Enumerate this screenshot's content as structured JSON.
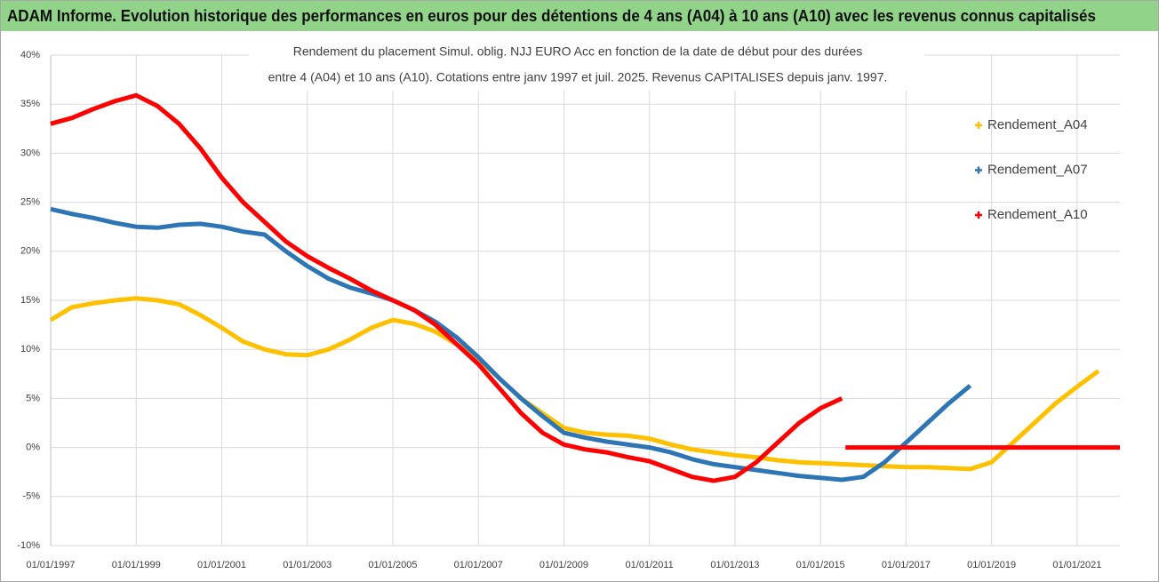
{
  "chart_data": {
    "type": "line",
    "title": "ADAM Informe. Evolution historique des performances en euros pour des détentions de 4 ans (A04) à 10 ans (A10) avec les revenus connus capitalisés",
    "subtitle": [
      "Rendement du placement Simul. oblig. NJJ EURO Acc en fonction de la date de début pour des durées",
      "entre 4 (A04) et 10 ans (A10). Cotations entre janv 1997 et juil. 2025. Revenus CAPITALISES depuis janv. 1997."
    ],
    "xlim": [
      "1997-01-01",
      "2022-01-01"
    ],
    "xticks": [
      {
        "value": "1997-01-01",
        "label": "01/01/1997"
      },
      {
        "value": "1999-01-01",
        "label": "01/01/1999"
      },
      {
        "value": "2001-01-01",
        "label": "01/01/2001"
      },
      {
        "value": "2003-01-01",
        "label": "01/01/2003"
      },
      {
        "value": "2005-01-01",
        "label": "01/01/2005"
      },
      {
        "value": "2007-01-01",
        "label": "01/01/2007"
      },
      {
        "value": "2009-01-01",
        "label": "01/01/2009"
      },
      {
        "value": "2011-01-01",
        "label": "01/01/2011"
      },
      {
        "value": "2013-01-01",
        "label": "01/01/2013"
      },
      {
        "value": "2015-01-01",
        "label": "01/01/2015"
      },
      {
        "value": "2017-01-01",
        "label": "01/01/2017"
      },
      {
        "value": "2019-01-01",
        "label": "01/01/2019"
      },
      {
        "value": "2021-01-01",
        "label": "01/01/2021"
      }
    ],
    "ylim": [
      -10,
      40
    ],
    "yticks": [
      {
        "value": -10,
        "label": "-10%"
      },
      {
        "value": -5,
        "label": "-5%"
      },
      {
        "value": 0,
        "label": "0%"
      },
      {
        "value": 5,
        "label": "5%"
      },
      {
        "value": 10,
        "label": "10%"
      },
      {
        "value": 15,
        "label": "15%"
      },
      {
        "value": 20,
        "label": "20%"
      },
      {
        "value": 25,
        "label": "25%"
      },
      {
        "value": 30,
        "label": "30%"
      },
      {
        "value": 35,
        "label": "35%"
      },
      {
        "value": 40,
        "label": "40%"
      }
    ],
    "grid": true,
    "legend": "right",
    "series": [
      {
        "name": "Rendement_A04",
        "color": "#ffc000",
        "x": [
          "1997-01-01",
          "1997-07-01",
          "1998-01-01",
          "1998-07-01",
          "1999-01-01",
          "1999-07-01",
          "2000-01-01",
          "2000-07-01",
          "2001-01-01",
          "2001-07-01",
          "2002-01-01",
          "2002-07-01",
          "2003-01-01",
          "2003-07-01",
          "2004-01-01",
          "2004-07-01",
          "2005-01-01",
          "2005-07-01",
          "2006-01-01",
          "2006-07-01",
          "2007-01-01",
          "2007-07-01",
          "2008-01-01",
          "2008-07-01",
          "2009-01-01",
          "2009-07-01",
          "2010-01-01",
          "2010-07-01",
          "2011-01-01",
          "2011-07-01",
          "2012-01-01",
          "2012-07-01",
          "2013-01-01",
          "2013-07-01",
          "2014-01-01",
          "2014-07-01",
          "2015-01-01",
          "2015-07-01",
          "2016-01-01",
          "2016-07-01",
          "2017-01-01",
          "2017-07-01",
          "2018-01-01",
          "2018-07-01",
          "2019-01-01",
          "2019-07-01",
          "2020-01-01",
          "2020-07-01",
          "2021-01-01",
          "2021-07-01"
        ],
        "values": [
          13,
          14.3,
          14.7,
          15,
          15.2,
          15,
          14.6,
          13.5,
          12.2,
          10.8,
          10,
          9.5,
          9.4,
          10,
          11,
          12.2,
          13,
          12.6,
          11.8,
          10.5,
          9,
          7,
          5,
          3.5,
          2,
          1.5,
          1.3,
          1.2,
          0.9,
          0.3,
          -0.2,
          -0.5,
          -0.8,
          -1,
          -1.3,
          -1.5,
          -1.6,
          -1.7,
          -1.8,
          -1.9,
          -2,
          -2,
          -2.1,
          -2.2,
          -1.5,
          0.5,
          2.5,
          4.5,
          6.2,
          7.8
        ]
      },
      {
        "name": "Rendement_A07",
        "color": "#2e75b6",
        "x": [
          "1997-01-01",
          "1997-07-01",
          "1998-01-01",
          "1998-07-01",
          "1999-01-01",
          "1999-07-01",
          "2000-01-01",
          "2000-07-01",
          "2001-01-01",
          "2001-07-01",
          "2002-01-01",
          "2002-07-01",
          "2003-01-01",
          "2003-07-01",
          "2004-01-01",
          "2004-07-01",
          "2005-01-01",
          "2005-07-01",
          "2006-01-01",
          "2006-07-01",
          "2007-01-01",
          "2007-07-01",
          "2008-01-01",
          "2008-07-01",
          "2009-01-01",
          "2009-07-01",
          "2010-01-01",
          "2010-07-01",
          "2011-01-01",
          "2011-07-01",
          "2012-01-01",
          "2012-07-01",
          "2013-01-01",
          "2013-07-01",
          "2014-01-01",
          "2014-07-01",
          "2015-01-01",
          "2015-07-01",
          "2016-01-01",
          "2016-07-01",
          "2017-01-01",
          "2017-07-01",
          "2018-01-01",
          "2018-07-01"
        ],
        "values": [
          24.3,
          23.8,
          23.4,
          22.9,
          22.5,
          22.4,
          22.7,
          22.8,
          22.5,
          22,
          21.7,
          20,
          18.5,
          17.2,
          16.3,
          15.7,
          15,
          14,
          12.8,
          11.2,
          9.2,
          7,
          5,
          3.2,
          1.5,
          1,
          0.6,
          0.3,
          0,
          -0.5,
          -1.2,
          -1.7,
          -2,
          -2.3,
          -2.6,
          -2.9,
          -3.1,
          -3.3,
          -3,
          -1.5,
          0.5,
          2.5,
          4.5,
          6.3
        ]
      },
      {
        "name": "Rendement_A10",
        "color": "#ff0000",
        "x": [
          "1997-01-01",
          "1997-07-01",
          "1998-01-01",
          "1998-07-01",
          "1999-01-01",
          "1999-07-01",
          "2000-01-01",
          "2000-07-01",
          "2001-01-01",
          "2001-07-01",
          "2002-01-01",
          "2002-07-01",
          "2003-01-01",
          "2003-07-01",
          "2004-01-01",
          "2004-07-01",
          "2005-01-01",
          "2005-07-01",
          "2006-01-01",
          "2006-07-01",
          "2007-01-01",
          "2007-07-01",
          "2008-01-01",
          "2008-07-01",
          "2009-01-01",
          "2009-07-01",
          "2010-01-01",
          "2010-07-01",
          "2011-01-01",
          "2011-07-01",
          "2012-01-01",
          "2012-07-01",
          "2013-01-01",
          "2013-07-01",
          "2014-01-01",
          "2014-07-01",
          "2015-01-01",
          "2015-07-01",
          "2015-07-15",
          "2015-08-01",
          "2022-01-01"
        ],
        "values": [
          33,
          33.6,
          34.5,
          35.3,
          35.9,
          34.8,
          33,
          30.5,
          27.5,
          25,
          23,
          21,
          19.5,
          18.3,
          17.2,
          16,
          15,
          14,
          12.5,
          10.5,
          8.5,
          6,
          3.5,
          1.5,
          0.3,
          -0.2,
          -0.5,
          -1,
          -1.4,
          -2.2,
          -3,
          -3.4,
          -3,
          -1.5,
          0.5,
          2.5,
          4,
          5,
          null,
          0,
          0
        ]
      }
    ]
  }
}
